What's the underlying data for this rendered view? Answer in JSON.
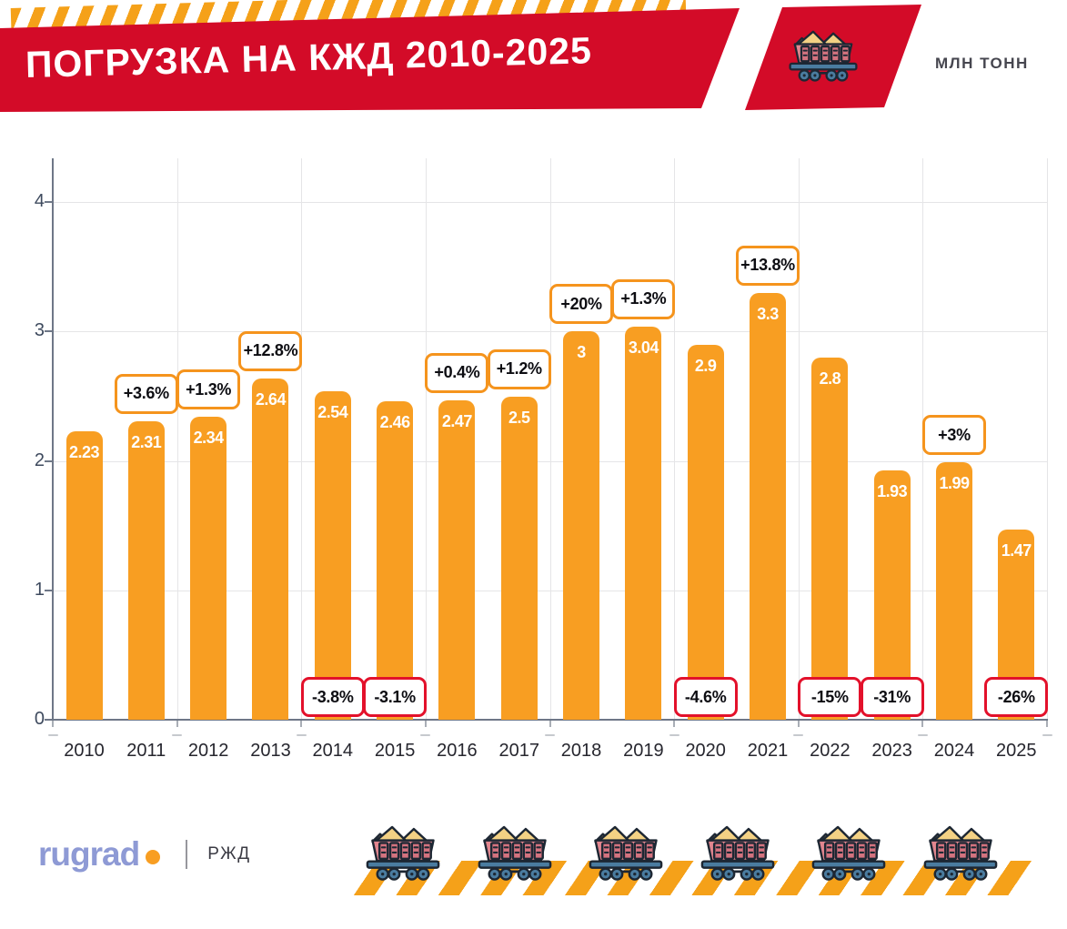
{
  "header": {
    "title": "ПОГРУЗКА НА КЖД 2010-2025",
    "unit_label": "МЛН ТОНН"
  },
  "chart_data": {
    "type": "bar",
    "title": "ПОГРУЗКА НА КЖД 2010-2025",
    "ylabel": "млн тонн",
    "ylim": [
      0,
      4.3
    ],
    "yticks": [
      0,
      1,
      2,
      3,
      4
    ],
    "grid": true,
    "legend": "none",
    "categories": [
      "2010",
      "2011",
      "2012",
      "2013",
      "2014",
      "2015",
      "2016",
      "2017",
      "2018",
      "2019",
      "2020",
      "2021",
      "2022",
      "2023",
      "2024",
      "2025"
    ],
    "values": [
      2.23,
      2.31,
      2.34,
      2.64,
      2.54,
      2.46,
      2.47,
      2.5,
      3,
      3.04,
      2.9,
      3.3,
      2.8,
      1.93,
      1.99,
      1.47
    ],
    "pct_change": [
      null,
      "+3.6%",
      "+1.3%",
      "+12.8%",
      "-3.8%",
      "-3.1%",
      "+0.4%",
      "+1.2%",
      "+20%",
      "+1.3%",
      "-4.6%",
      "+13.8%",
      "-15%",
      "-31%",
      "+3%",
      "-26%"
    ]
  },
  "colors": {
    "banner_red": "#D30B28",
    "bar_orange": "#F89E22",
    "stripe_orange": "#F5A119",
    "pct_up_border": "#F5941D",
    "pct_down_border": "#E3112B",
    "axis_text": "#3E4A5E",
    "year_text": "#26262E",
    "grid_line": "#E5E5E7",
    "axis_line": "#6E7787",
    "logo_blue": "#8E9AD5",
    "logo_dot": "#F89E22",
    "source_text": "#3B3B44",
    "unit_text": "#46464F"
  },
  "footer": {
    "logo_text": "rugrad",
    "separator": "|",
    "source_label": "РЖД",
    "wagon_count": 6
  },
  "icons": {
    "header_icon": "coal-wagon-icon",
    "footer_icon": "coal-wagon-icon"
  }
}
